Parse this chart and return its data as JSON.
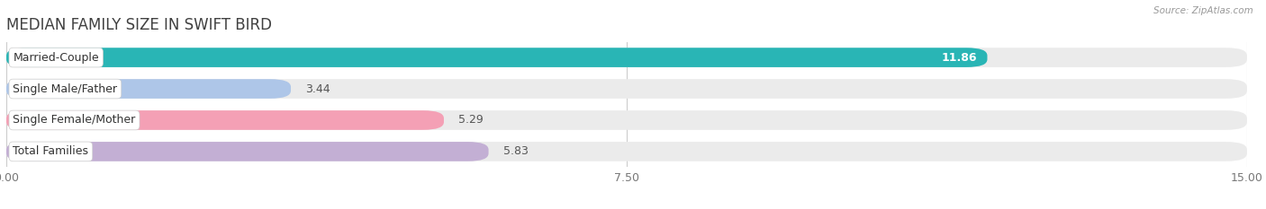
{
  "title": "MEDIAN FAMILY SIZE IN SWIFT BIRD",
  "source_text": "Source: ZipAtlas.com",
  "categories": [
    "Married-Couple",
    "Single Male/Father",
    "Single Female/Mother",
    "Total Families"
  ],
  "values": [
    11.86,
    3.44,
    5.29,
    5.83
  ],
  "bar_colors": [
    "#29b5b5",
    "#aec6e8",
    "#f4a0b5",
    "#c3afd4"
  ],
  "bar_bg_colors": [
    "#ebebeb",
    "#ebebeb",
    "#ebebeb",
    "#ebebeb"
  ],
  "value_inside": [
    true,
    false,
    false,
    false
  ],
  "xlim": [
    0,
    15.0
  ],
  "xticks": [
    0.0,
    7.5,
    15.0
  ],
  "xtick_labels": [
    "0.00",
    "7.50",
    "15.00"
  ],
  "bar_height": 0.62,
  "figsize": [
    14.06,
    2.33
  ],
  "dpi": 100,
  "background_color": "#ffffff",
  "title_fontsize": 12,
  "label_fontsize": 9,
  "value_fontsize": 9,
  "tick_fontsize": 9
}
